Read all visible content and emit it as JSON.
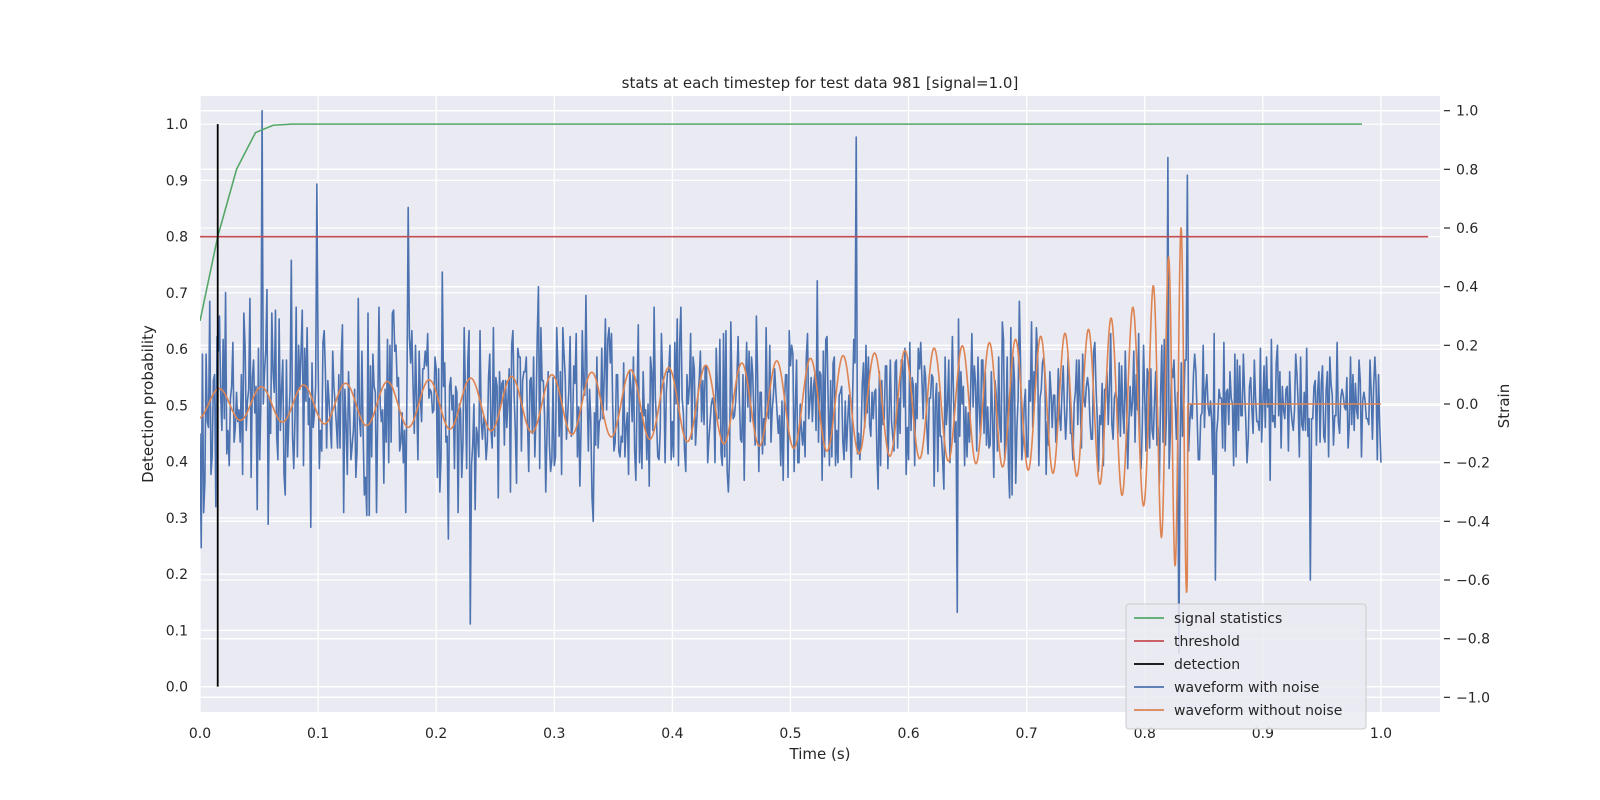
{
  "chart_data": {
    "type": "line",
    "title": "stats at each timestep for test data 981 [signal=1.0]",
    "xlabel": "Time (s)",
    "ylabel_left": "Detection probability",
    "ylabel_right": "Strain",
    "xlim": [
      0.0,
      1.05
    ],
    "ylim_left": [
      -0.045,
      1.05
    ],
    "ylim_right": [
      -1.05,
      1.05
    ],
    "grid": true,
    "legend_position": "lower-right",
    "x_ticks": [
      "0.0",
      "0.1",
      "0.2",
      "0.3",
      "0.4",
      "0.5",
      "0.6",
      "0.7",
      "0.8",
      "0.9",
      "1.0"
    ],
    "y_left_ticks": [
      "0.0",
      "0.1",
      "0.2",
      "0.3",
      "0.4",
      "0.5",
      "0.6",
      "0.7",
      "0.8",
      "0.9",
      "1.0"
    ],
    "y_right_ticks": [
      "−1.0",
      "−0.8",
      "−0.6",
      "−0.4",
      "−0.2",
      "0.0",
      "0.2",
      "0.4",
      "0.6",
      "0.8",
      "1.0"
    ],
    "legend": [
      "signal statistics",
      "threshold",
      "detection",
      "waveform with noise",
      "waveform without noise"
    ],
    "colors": {
      "signal_statistics": "#55a868",
      "threshold": "#c44e52",
      "detection": "#000000",
      "waveform_with_noise": "#4c72b0",
      "waveform_without_noise": "#dd8452",
      "plot_bg": "#eaeaf2",
      "grid": "#ffffff"
    },
    "series": [
      {
        "name": "signal statistics",
        "axis": "left",
        "x": [
          0.0,
          0.015,
          0.031,
          0.047,
          0.062,
          0.078,
          0.1,
          0.2,
          0.3,
          0.4,
          0.5,
          0.6,
          0.7,
          0.8,
          0.9,
          0.984
        ],
        "y": [
          0.65,
          0.8,
          0.92,
          0.985,
          0.998,
          1.0,
          1.0,
          1.0,
          1.0,
          1.0,
          1.0,
          1.0,
          1.0,
          1.0,
          1.0,
          1.0
        ]
      },
      {
        "name": "threshold",
        "axis": "left",
        "x": [
          0.0,
          1.04
        ],
        "y": [
          0.8,
          0.8
        ]
      },
      {
        "name": "detection",
        "axis": "left",
        "x": [
          0.015,
          0.015
        ],
        "y": [
          0.0,
          1.0
        ]
      },
      {
        "name": "waveform with noise",
        "axis": "right",
        "x_range": [
          0.0,
          1.0
        ],
        "y": [
          -0.1,
          -0.49,
          0.17,
          -0.37,
          -0.27,
          0.17,
          -0.06,
          -0.08,
          0.35,
          -0.24,
          -0.18,
          0.08,
          0.1,
          -0.35,
          0.23,
          0.18,
          0.3,
          0.03,
          -0.09,
          0.22,
          -0.05,
          0.38,
          -0.17,
          -0.09,
          -0.21,
          0.02,
          0.06,
          0.21,
          -0.13,
          -0.08,
          0.04,
          -0.06,
          -0.02,
          -0.13,
          0.1,
          -0.24,
          0.31,
          0.2,
          -0.09,
          0.01,
          0.05,
          0.36,
          -0.25,
          0.09,
          0.15,
          -0.03,
          0.06,
          -0.36,
          0.19,
          -0.19,
          0.0,
          -0.26,
          0.0,
          0.11,
          0.18,
          0.39,
          -0.41,
          0.02,
          -0.1,
          0.31,
          0.11,
          0.04,
          0.32,
          -0.11,
          -0.19,
          0.29,
          -0.09,
          0.05,
          0.15,
          -0.24,
          -0.31,
          0.15,
          -0.18,
          -0.05,
          0.05,
          0.49,
          -0.11,
          -0.22,
          -0.05,
          0.33,
          -0.18,
          0.2,
          0.05,
          0.18,
          0.32,
          -0.21,
          0.19,
          0.01,
          0.26,
          -0.07,
          0.02,
          -0.42,
          0.14,
          -0.08,
          -0.03,
          0.06,
          0.07,
          0.15,
          -0.22,
          -0.09,
          -0.16,
          0.21,
          0.25,
          0.11,
          -0.15,
          0.08,
          0.01,
          -0.07,
          -0.15,
          0.18,
          0.06,
          0.0,
          -0.07,
          -0.15,
          0.1,
          -0.15,
          0.16,
          0.27,
          -0.37,
          0.05,
          -0.07,
          -0.24,
          0.11,
          -0.04,
          -0.19,
          -0.14,
          -0.09,
          0.05,
          -0.25,
          -0.16,
          0.36,
          -0.05,
          -0.11,
          0.18,
          -0.1,
          -0.31,
          -0.25,
          -0.38,
          0.31,
          -0.38,
          0.13,
          -0.18,
          0.17,
          0.06,
          0.04,
          -0.37,
          -0.02,
          0.33,
          0.0,
          -0.06,
          -0.02,
          -0.27,
          0.05,
          -0.13,
          0.22,
          -0.2,
          0.2,
          -0.13,
          0.31,
          0.32,
          0.18,
          0.2,
          0.06,
          0.09,
          -0.16,
          -0.13,
          -0.03,
          -0.2,
          -0.09,
          -0.37,
          0.06,
          0.06,
          0.23,
          0.14,
          0.25,
          0.06,
          -0.1,
          0.2,
          0.01,
          -0.19,
          0.18,
          0.02,
          -0.06,
          0.12,
          0.12,
          0.18,
          0.13,
          0.24,
          0.02,
          0.05,
          0.04,
          -0.03,
          -0.02,
          0.16,
          0.12,
          -0.25,
          0.12,
          -0.3,
          -0.18,
          0.45,
          0.06,
          0.14,
          -0.13,
          -0.11,
          -0.46,
          0.06,
          0.09,
          -0.02,
          0.03,
          -0.22,
          0.06,
          0.04,
          -0.37,
          0.0,
          -0.02,
          -0.25,
          -0.13,
          0.26,
          0.04,
          -0.22,
          0.15,
          0.25,
          0.07,
          -0.21,
          -0.14,
          0.0,
          -0.36,
          -0.08,
          -0.11,
          -0.18,
          0.25,
          -0.06,
          -0.12,
          -0.04,
          -0.08,
          -0.19,
          -0.13,
          0.09,
          0.17,
          -0.09,
          -0.15,
          0.26,
          -0.11,
          0.09,
          0.06,
          -0.32,
          0.11,
          0.0,
          0.07,
          0.08,
          -0.14,
          0.08,
          -0.08,
          0.02,
          0.12,
          -0.3,
          0.2,
          0.25,
          0.03,
          -0.09,
          -0.27,
          0.19,
          0.16,
          0.16,
          -0.16,
          0.08,
          0.11,
          0.11,
          0.16,
          -0.06,
          -0.23,
          0.08,
          0.09,
          -0.1,
          0.16,
          -0.18,
          -0.04,
          0.23,
          0.4,
          -0.22,
          0.26,
          0.08,
          0.08,
          -0.04,
          -0.3,
          -0.1,
          0.11,
          -0.14,
          -0.23,
          -0.19,
          0.09,
          -0.21,
          -0.18,
          0.26,
          0.12,
          -0.11,
          0.11,
          -0.24,
          0.26,
          0.17,
          0.09,
          -0.12,
          -0.04,
          0.05,
          0.23,
          -0.11,
          -0.08,
          0.13,
          0.07,
          0.24,
          -0.18,
          -0.01,
          -0.28,
          -0.08,
          0.25,
          0.06,
          0.03,
          0.37,
          0.04,
          -0.16,
          0.05,
          -0.06,
          -0.32,
          -0.4,
          -0.03,
          -0.14,
          0.16,
          -0.15,
          -0.06,
          -0.05,
          0.19,
          -0.05,
          0.09,
          0.29,
          -0.02,
          0.22,
          0.26,
          0.14,
          0.24,
          -0.01,
          -0.16,
          -0.13,
          0.1,
          0.1,
          -0.16,
          -0.18,
          -0.11,
          -0.13,
          0.14,
          -0.18,
          -0.08,
          -0.03,
          -0.24,
          0.11,
          0.05,
          -0.06,
          0.16,
          -0.16,
          -0.26,
          0.03,
          0.27,
          -0.2,
          -0.03,
          -0.22,
          0.11,
          -0.04,
          -0.02,
          -0.19,
          0.0,
          -0.28,
          0.16,
          0.11,
          -0.09,
          0.33,
          0.02,
          -0.06,
          -0.18,
          -0.19,
          -0.09,
          0.24,
          0.09,
          0.07,
          -0.2,
          0.04,
          0.11,
          0.11,
          0.2,
          -0.19,
          -0.06,
          -0.18,
          0.21,
          0.0,
          0.29,
          -0.21,
          0.21,
          0.33,
          0.02,
          -0.03,
          -0.16,
          -0.23,
          0.1,
          0.0,
          0.06,
          0.24,
          -0.12,
          0.16,
          0.12,
          -0.14,
          -0.06,
          0.03,
          0.08,
          0.18,
          -0.06,
          0.08,
          -0.07,
          0.13,
          0.13,
          -0.2,
          -0.12,
          -0.06,
          0.0,
          0.02,
          -0.01,
          -0.2,
          0.19,
          0.05,
          -0.05,
          0.22,
          -0.17,
          -0.21,
          0.24,
          -0.18,
          0.25,
          -0.23,
          -0.3,
          -0.18,
          0.28,
          0.03,
          -0.05,
          -0.04,
          0.01,
          0.09,
          0.23,
          0.02,
          -0.12,
          -0.13,
          0.1,
          -0.26,
          0.04,
          0.21,
          -0.01,
          0.18,
          -0.06,
          0.16,
          0.1,
          -0.05,
          -0.14,
          0.3,
          0.1,
          -0.23,
          0.04,
          0.04,
          -0.17,
          -0.05,
          -0.14,
          0.26,
          -0.02,
          -0.05,
          0.2,
          -0.13,
          -0.02,
          0.03,
          0.12,
          0.04,
          -0.03,
          -0.1,
          -0.04,
          -0.21,
          0.01,
          -0.26,
          0.0,
          0.1,
          0.1,
          -0.25,
          0.25,
          0.13,
          0.2,
          0.17,
          -0.23,
          -0.01,
          0.15,
          -0.2,
          -0.2,
          0.0,
          -0.09,
          -0.14,
          -0.06,
          -0.18,
          0.16,
          0.24,
          -0.05,
          0.01,
          0.09,
          -0.06,
          0.06,
          0.1,
          -0.09,
          0.42,
          -0.13,
          0.11,
          0.1,
          -0.26,
          0.18,
          -0.18,
          0.22,
          0.23,
          0.0,
          -0.21,
          0.08,
          -0.18,
          0.14,
          0.16,
          -0.21,
          -0.09,
          -0.2,
          0.03,
          0.04,
          0.06,
          -0.13,
          -0.19,
          0.01,
          -0.16,
          -0.06,
          0.03,
          -0.08,
          -0.25,
          0.02,
          0.22,
          0.14,
          -0.12,
          -0.17,
          -0.1,
          -0.19,
          -0.1,
          0.07,
          0.14,
          -0.08,
          0.2,
          -0.03,
          0.16,
          -0.07,
          -0.11,
          0.04,
          -0.05,
          0.04,
          0.05,
          -0.17,
          -0.29,
          0.11,
          -0.21,
          0.08,
          -0.07,
          -0.05,
          0.13,
          0.13,
          -0.22,
          -0.04,
          0.15,
          -0.06,
          -0.11,
          -0.16,
          0.14,
          0.15,
          -0.15,
          0.02,
          -0.1,
          0.15,
          0.15,
          -0.01,
          0.19,
          -0.24,
          -0.08,
          -0.19,
          0.21,
          -0.09,
          0.09,
          0.06,
          -0.21,
          0.07,
          -0.05,
          0.19,
          0.12,
          0.21,
          0.08,
          -0.05,
          0.13,
          0.09,
          -0.08,
          -0.17,
          0.02,
          0.02,
          0.1,
          0.09,
          -0.28,
          0.01,
          0.07,
          -0.23,
          0.04,
          -0.11,
          -0.11,
          -0.19,
          -0.29,
          0.16,
          -0.07,
          0.0,
          0.15,
          -0.2,
          0.02,
          0.23,
          0.01,
          -0.13,
          -0.06,
          0.01,
          0.29,
          -0.11,
          0.11,
          0.0,
          0.06,
          -0.21,
          -0.01,
          -0.18,
          -0.03,
          -0.13,
          0.05,
          0.24,
          -0.01,
          0.13,
          0.07,
          -0.16,
          0.16,
          -0.01,
          -0.11,
          0.15,
          0.15,
          -0.1,
          0.11,
          -0.14,
          -0.01,
          -0.15,
          -0.14,
          0.11,
          -0.05,
          -0.25,
          0.08,
          0.03,
          -0.16,
          0.16,
          -0.08,
          -0.13,
          0.28,
          0.22,
          -0.19,
          -0.06,
          0.16,
          -0.21,
          -0.32,
          0.26,
          -0.31,
          0.16,
          0.08,
          -0.27,
          -0.08,
          0.02,
          0.35,
          0.13,
          -0.19,
          -0.13,
          0.0,
          0.05,
          -0.18,
          -0.18,
          0.08,
          0.01,
          0.28,
          -0.08,
          0.11,
          0.05,
          0.26,
          0.17,
          -0.21,
          0.02,
          0.05,
          0.14,
          0.16,
          0.09,
          -0.24,
          -0.06,
          -0.14,
          0.11,
          0.04,
          -0.08,
          0.03,
          0.03,
          -0.13,
          -0.04,
          0.12,
          -0.04,
          -0.09,
          0.04,
          0.13,
          -0.01,
          -0.12,
          -0.03,
          0.16,
          0.08,
          -0.1,
          -0.1,
          -0.19,
          0.0,
          0.04,
          0.15,
          -0.07,
          0.15,
          0.0,
          -0.15,
          0.17,
          0.02,
          -0.01,
          0.06,
          0.09,
          0.05,
          -0.06,
          -0.12,
          -0.12,
          0.18,
          0.21,
          0.05,
          -0.05,
          -0.23,
          -0.04,
          -0.07,
          0.07,
          -0.21,
          0.05,
          0.05,
          0.11,
          -0.07,
          0.06,
          0.24,
          -0.07,
          -0.12,
          0.02,
          0.04,
          0.02,
          -0.1,
          0.14,
          -0.11,
          0.13,
          -0.03,
          -0.1,
          0.18,
          0.0,
          -0.22,
          -0.06,
          0.06,
          -0.04,
          0.01,
          0.18,
          -0.13,
          0.1,
          -0.02,
          0.24,
          -0.15,
          -0.22,
          -0.07,
          0.2,
          0.02,
          -0.16,
          0.12,
          0.1,
          -0.15,
          0.12,
          -0.09,
          -0.12,
          0.01,
          0.11,
          -0.14,
          -0.08,
          -0.27,
          0.03,
          0.2,
          -0.13,
          0.22,
          -0.14,
          -0.02,
          0.08,
          -0.22,
          -0.1,
          0.12,
          0.09,
          0.15,
          0.0,
          -0.12,
          0.04,
          -0.09,
          -0.17,
          0.14,
          -0.11,
          -0.02,
          0.15,
          0.15,
          0.03,
          -0.16,
          -0.06,
          0.0,
          -0.05,
          0.1,
          0.17,
          0.11,
          -0.04,
          -0.19,
          -0.19,
          -0.04,
          -0.03,
          0.2,
          -0.08,
          0.05,
          0.1,
          -0.01,
          -0.04,
          0.01,
          -0.06,
          -0.24,
          0.24,
          0.2,
          -0.1,
          -0.05,
          0.05,
          0.02,
          0.02,
          -0.15,
          0.21,
          -0.16,
          0.04,
          0.05,
          -0.07,
          0.11,
          0.02,
          0.0,
          -0.21,
          0.17,
          -0.18,
          0.15,
          -0.09,
          0.13,
          -0.04,
          -0.04,
          0.17,
          0.04,
          -0.06,
          -0.2,
          -0.12,
          0.06,
          0.09,
          -0.02,
          -0.1,
          0.15,
          0.02,
          -0.06,
          -0.06,
          -0.09,
          0.19,
          -0.13,
          0.0,
          0.13,
          -0.08,
          0.16,
          -0.01,
          0.05,
          -0.26,
          0.22,
          -0.06,
          -0.04,
          -0.08,
          0.14,
          0.2,
          -0.04,
          0.11,
          -0.15,
          0.06,
          -0.02,
          -0.05,
          0.05,
          0.06,
          -0.16,
          0.11,
          -0.01,
          -0.06,
          -0.09,
          -0.02,
          0.17,
          0.1,
          0.0,
          -0.18,
          0.16,
          -0.07,
          -0.09,
          0.04,
          -0.09,
          0.19,
          -0.11,
          -0.05,
          0.21,
          -0.05,
          -0.05,
          0.06,
          0.08,
          -0.14,
          0.04,
          0.11,
          -0.13,
          0.07,
          0.13,
          -0.11,
          -0.13,
          0.05,
          0.11,
          -0.18,
          0.16,
          0.07,
          0.03,
          -0.14,
          -0.04,
          -0.04,
          0.21,
          -0.06,
          -0.1,
          0.02,
          0.05,
          0.03,
          -0.01,
          -0.02,
          0.09,
          -0.15,
          -0.07,
          0.16,
          -0.07,
          0.1,
          -0.09,
          0.07,
          -0.02,
          -0.05,
          0.15,
          0.08,
          -0.18,
          0.01,
          0.04,
          0.01,
          -0.05,
          -0.05,
          -0.07,
          0.15,
          0.04,
          -0.12,
          0.06,
          0.16,
          0.07,
          -0.19,
          0.1,
          -0.07,
          -0.2
        ],
        "reference_extremes": [
          {
            "x": 0.053,
            "y": 1.0
          },
          {
            "x": 0.099,
            "y": 0.75
          },
          {
            "x": 0.176,
            "y": 0.67
          },
          {
            "x": 0.229,
            "y": -0.75
          },
          {
            "x": 0.556,
            "y": 0.91
          },
          {
            "x": 0.641,
            "y": -0.71
          },
          {
            "x": 0.82,
            "y": 0.84
          },
          {
            "x": 0.829,
            "y": -0.85
          },
          {
            "x": 0.836,
            "y": 0.78
          },
          {
            "x": 0.86,
            "y": -0.6
          },
          {
            "x": 0.94,
            "y": -0.6
          }
        ]
      },
      {
        "name": "waveform without noise",
        "axis": "right",
        "x_range": [
          0.0,
          0.836
        ],
        "y_after_end": 0.0,
        "frequency_hz": [
          28,
          60
        ],
        "amplitude": [
          0.05,
          0.1,
          0.15,
          0.2,
          0.25,
          0.35,
          0.5,
          0.65
        ],
        "amplitude_at_x": [
          0.0,
          0.3,
          0.5,
          0.65,
          0.75,
          0.8,
          0.82,
          0.836
        ]
      }
    ]
  }
}
